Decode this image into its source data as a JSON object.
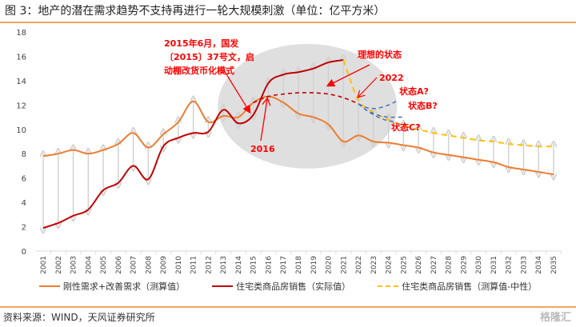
{
  "header": {
    "title": "图 3：地产的潜在需求趋势不支持再进行一轮大规模刺激（单位：亿平方米）"
  },
  "footer": {
    "source": "资料来源：WIND，天风证券研究所",
    "watermark": "格隆汇"
  },
  "colors": {
    "demand": "#ed7d31",
    "actual": "#c00000",
    "forecast": "#ffc000",
    "scenario": "#4472c4",
    "annot": "#ff0000",
    "arrow": "#d0d0d0",
    "ellipse": "#d9d9d9"
  },
  "chart_data": {
    "type": "line",
    "title": "地产的潜在需求趋势不支持再进行一轮大规模刺激（单位：亿平方米）",
    "xlabel": "",
    "ylabel": "",
    "ylim": [
      0,
      18
    ],
    "yticks": [
      "0",
      "2",
      "4",
      "6",
      "8",
      "10",
      "12",
      "14",
      "16",
      "18"
    ],
    "x": [
      "2001",
      "2002",
      "2003",
      "2004",
      "2005",
      "2006",
      "2007",
      "2008",
      "2009",
      "2010",
      "2011",
      "2012",
      "2013",
      "2014",
      "2015",
      "2016",
      "2017",
      "2018",
      "2019",
      "2020",
      "2021",
      "2022",
      "2023",
      "2024",
      "2025",
      "2026",
      "2027",
      "2028",
      "2029",
      "2030",
      "2031",
      "2032",
      "2033",
      "2034",
      "2035"
    ],
    "legend_position": "bottom",
    "grid": false,
    "series": [
      {
        "name": "刚性需求+改善需求（测算值）",
        "style": "solid",
        "values": [
          7.8,
          8.0,
          8.3,
          8.0,
          8.3,
          8.8,
          9.7,
          8.5,
          9.6,
          10.6,
          12.3,
          10.6,
          11.1,
          11.0,
          12.2,
          12.7,
          12.2,
          11.3,
          11.0,
          10.4,
          9.0,
          9.5,
          9.0,
          8.9,
          8.7,
          8.5,
          8.1,
          7.9,
          7.7,
          7.5,
          7.3,
          6.9,
          6.7,
          6.5,
          6.3
        ]
      },
      {
        "name": "住宅类商品房销售（实际值）",
        "style": "solid",
        "values": [
          1.9,
          2.3,
          2.9,
          3.4,
          5.0,
          5.6,
          7.0,
          5.9,
          8.6,
          9.3,
          9.7,
          9.8,
          11.6,
          10.5,
          11.2,
          13.8,
          14.5,
          14.7,
          15.0,
          15.5,
          15.7,
          null,
          null,
          null,
          null,
          null,
          null,
          null,
          null,
          null,
          null,
          null,
          null,
          null,
          null
        ]
      },
      {
        "name": "住宅类商品房销售（测算值-中性）",
        "style": "dashed",
        "values": [
          null,
          null,
          null,
          null,
          null,
          null,
          null,
          null,
          null,
          null,
          null,
          null,
          null,
          null,
          null,
          null,
          null,
          null,
          null,
          null,
          15.7,
          12.4,
          11.4,
          10.8,
          10.3,
          10.0,
          9.7,
          9.5,
          9.3,
          9.1,
          9.0,
          8.8,
          8.7,
          8.6,
          8.6
        ]
      }
    ],
    "ideal_path": {
      "name": "理想的状态",
      "x": [
        "2015",
        "2016",
        "2017",
        "2018",
        "2019",
        "2020",
        "2021",
        "2022"
      ],
      "values": [
        12.2,
        12.7,
        12.9,
        13.0,
        13.0,
        12.9,
        12.6,
        12.1
      ]
    },
    "scenarios": [
      {
        "label": "状态A?",
        "x": [
          "2022",
          "2022.5",
          "2023",
          "2023.5",
          "2024",
          "2024.5"
        ],
        "values": [
          12.1,
          11.8,
          11.7,
          11.8,
          12.0,
          12.3
        ]
      },
      {
        "label": "状态B?",
        "x": [
          "2022",
          "2022.5",
          "2023",
          "2023.5",
          "2024",
          "2024.5",
          "2025"
        ],
        "values": [
          12.1,
          11.6,
          11.3,
          11.1,
          11.0,
          11.0,
          11.0
        ]
      },
      {
        "label": "状态C?",
        "x": [
          "2022",
          "2022.5",
          "2023",
          "2023.5",
          "2024",
          "2024.5"
        ],
        "values": [
          12.1,
          11.6,
          11.2,
          10.9,
          10.7,
          10.6
        ]
      }
    ],
    "annotations": [
      {
        "text_lines": [
          "2015年6月，国发",
          "〔2015〕37号文，启",
          "动棚改货币化模式"
        ]
      },
      {
        "text": "2016"
      },
      {
        "text": "理想的状态"
      },
      {
        "text": "2022"
      }
    ]
  }
}
